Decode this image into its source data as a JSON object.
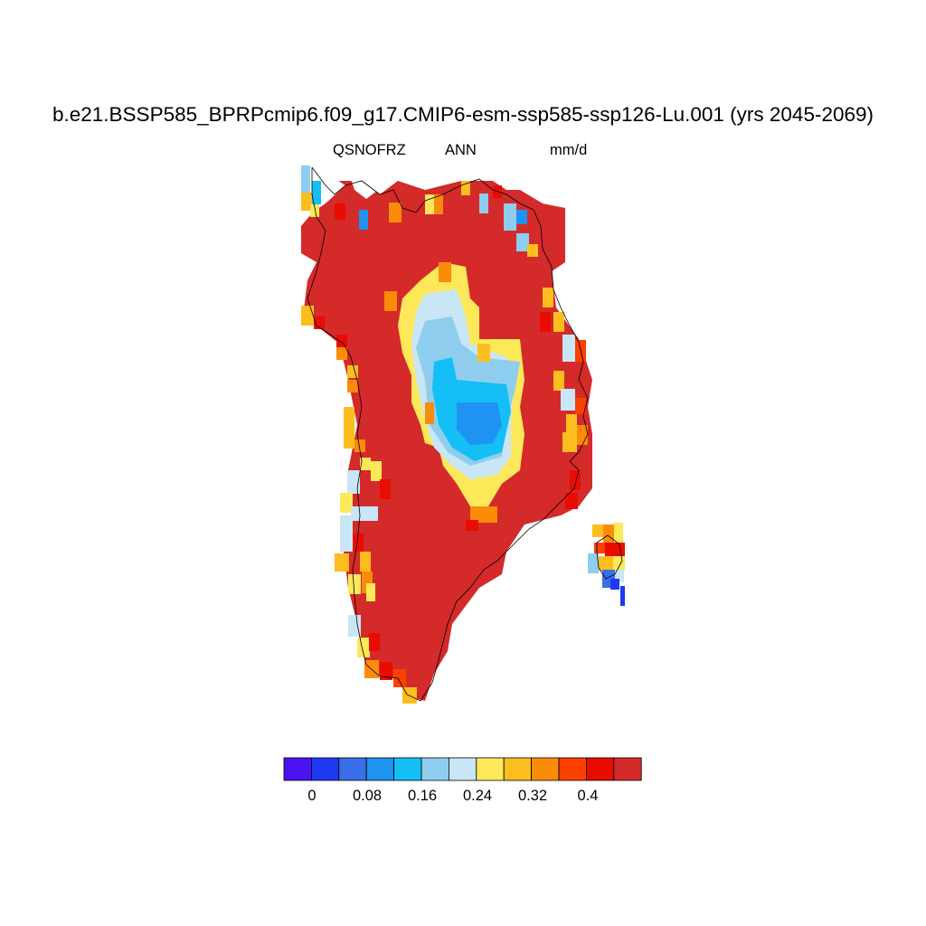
{
  "title": "b.e21.BSSP585_BPRPcmip6.f09_g17.CMIP6-esm-ssp585-ssp126-Lu.001 (yrs 2045-2069)",
  "subtitle": {
    "variable": "QSNOFRZ",
    "season": "ANN",
    "units": "mm/d"
  },
  "colorbar": {
    "colors": [
      "#4b12f2",
      "#1f38f2",
      "#3a6ee8",
      "#1e93f2",
      "#14bff5",
      "#8fcdee",
      "#c8e6f5",
      "#fde85a",
      "#fcbd1e",
      "#fb8c0a",
      "#fb4000",
      "#e80d00",
      "#d42a2a"
    ],
    "tick_labels": [
      "0",
      "0.08",
      "0.16",
      "0.24",
      "0.32",
      "0.4"
    ]
  }
}
